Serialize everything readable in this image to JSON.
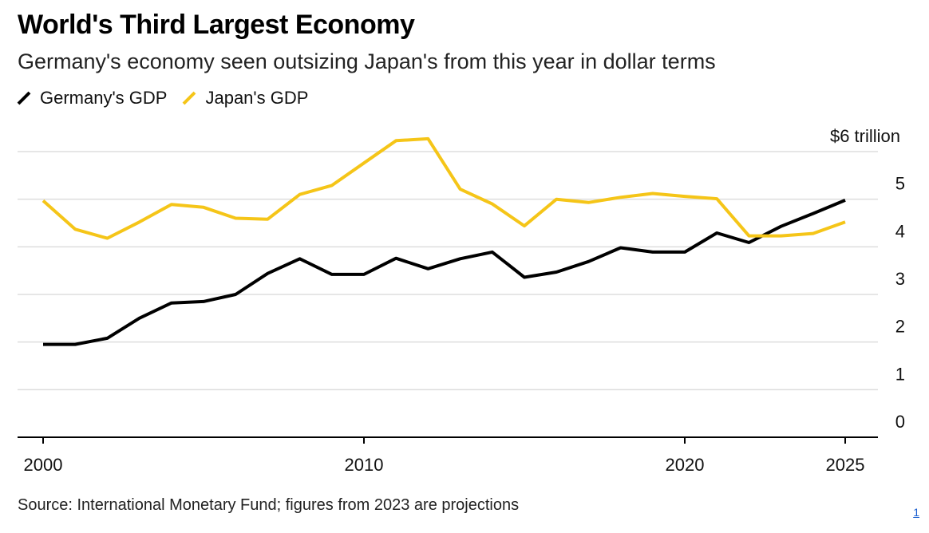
{
  "header": {
    "title": "World's Third Largest Economy",
    "subtitle": "Germany's economy seen outsizing Japan's from this year in dollar terms"
  },
  "legend": [
    {
      "label": "Germany's GDP",
      "color": "#000000"
    },
    {
      "label": "Japan's GDP",
      "color": "#f5c518"
    }
  ],
  "footer": {
    "source": "Source: International Monetary Fund; figures from 2023 are projections",
    "footnote_marker": "1"
  },
  "chart_data": {
    "type": "line",
    "title": "World's Third Largest Economy",
    "subtitle": "Germany's economy seen outsizing Japan's from this year in dollar terms",
    "x": [
      2000,
      2001,
      2002,
      2003,
      2004,
      2005,
      2006,
      2007,
      2008,
      2009,
      2010,
      2011,
      2012,
      2013,
      2014,
      2015,
      2016,
      2017,
      2018,
      2019,
      2020,
      2021,
      2022,
      2023,
      2024,
      2025
    ],
    "series": [
      {
        "name": "Germany's GDP",
        "color": "#000000",
        "values": [
          1.95,
          1.95,
          2.08,
          2.5,
          2.82,
          2.85,
          3.0,
          3.44,
          3.75,
          3.42,
          3.42,
          3.76,
          3.54,
          3.75,
          3.89,
          3.36,
          3.47,
          3.69,
          3.98,
          3.89,
          3.89,
          4.29,
          4.09,
          4.43,
          4.7,
          4.98
        ]
      },
      {
        "name": "Japan's GDP",
        "color": "#f5c518",
        "values": [
          4.97,
          4.37,
          4.18,
          4.52,
          4.89,
          4.83,
          4.6,
          4.58,
          5.1,
          5.29,
          5.76,
          6.23,
          6.27,
          5.21,
          4.9,
          4.44,
          5.0,
          4.93,
          5.04,
          5.12,
          5.06,
          5.01,
          4.23,
          4.23,
          4.28,
          4.52
        ]
      }
    ],
    "xticks": [
      2000,
      2010,
      2020,
      2025
    ],
    "yticks": [
      0,
      1,
      2,
      3,
      4,
      5,
      6
    ],
    "ytick_labels": [
      "0",
      "1",
      "2",
      "3",
      "4",
      "5",
      "$6 trillion"
    ],
    "xlim": [
      2000,
      2025
    ],
    "ylim": [
      0,
      6
    ],
    "grid": true,
    "legend_position": "top-left",
    "y_axis_side": "right"
  }
}
